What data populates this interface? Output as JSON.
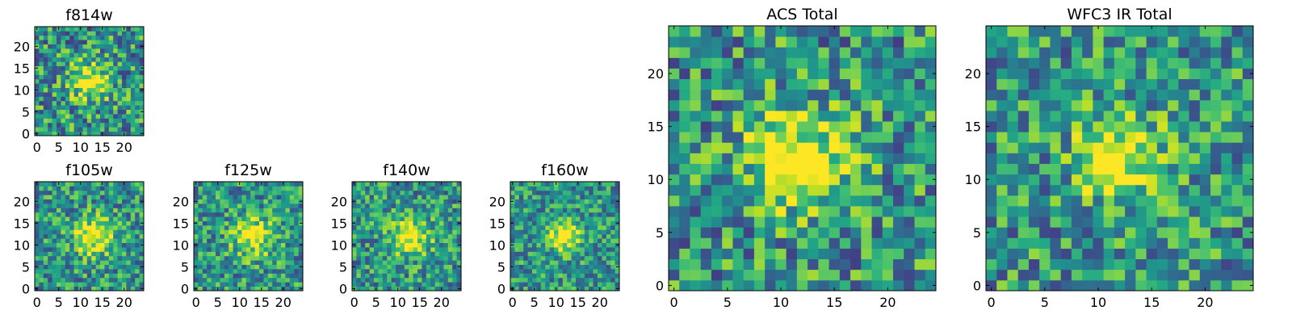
{
  "figure_title": "",
  "chart_data": [
    {
      "type": "heatmap",
      "title": "f814w",
      "grid_size": 25,
      "xticks": [
        0,
        5,
        10,
        15,
        20
      ],
      "yticks": [
        0,
        5,
        10,
        15,
        20
      ],
      "xlim": [
        0,
        25
      ],
      "ylim": [
        0,
        25
      ],
      "colormap": "viridis",
      "peak": {
        "x": 12,
        "y": 12,
        "sigma": 3.0,
        "amplitude": 0.55
      },
      "noise": 0.35,
      "seed": 11
    },
    {
      "type": "heatmap",
      "title": "f105w",
      "grid_size": 25,
      "xticks": [
        0,
        5,
        10,
        15,
        20
      ],
      "yticks": [
        0,
        5,
        10,
        15,
        20
      ],
      "xlim": [
        0,
        25
      ],
      "ylim": [
        0,
        25
      ],
      "colormap": "viridis",
      "peak": {
        "x": 13,
        "y": 12,
        "sigma": 3.0,
        "amplitude": 0.55
      },
      "noise": 0.3,
      "seed": 23
    },
    {
      "type": "heatmap",
      "title": "f125w",
      "grid_size": 25,
      "xticks": [
        0,
        5,
        10,
        15,
        20
      ],
      "yticks": [
        0,
        5,
        10,
        15,
        20
      ],
      "xlim": [
        0,
        25
      ],
      "ylim": [
        0,
        25
      ],
      "colormap": "viridis",
      "peak": {
        "x": 13,
        "y": 12,
        "sigma": 3.2,
        "amplitude": 0.5
      },
      "noise": 0.3,
      "seed": 37
    },
    {
      "type": "heatmap",
      "title": "f140w",
      "grid_size": 25,
      "xticks": [
        0,
        5,
        10,
        15,
        20
      ],
      "yticks": [
        0,
        5,
        10,
        15,
        20
      ],
      "xlim": [
        0,
        25
      ],
      "ylim": [
        0,
        25
      ],
      "colormap": "viridis",
      "peak": {
        "x": 13,
        "y": 12,
        "sigma": 3.0,
        "amplitude": 0.55
      },
      "noise": 0.3,
      "seed": 41
    },
    {
      "type": "heatmap",
      "title": "f160w",
      "grid_size": 25,
      "xticks": [
        0,
        5,
        10,
        15,
        20
      ],
      "yticks": [
        0,
        5,
        10,
        15,
        20
      ],
      "xlim": [
        0,
        25
      ],
      "ylim": [
        0,
        25
      ],
      "colormap": "viridis",
      "peak": {
        "x": 12,
        "y": 12,
        "sigma": 2.6,
        "amplitude": 0.55
      },
      "noise": 0.28,
      "seed": 53
    },
    {
      "type": "heatmap",
      "title": "ACS Total",
      "grid_size": 25,
      "xticks": [
        0,
        5,
        10,
        15,
        20
      ],
      "yticks": [
        0,
        5,
        10,
        15,
        20
      ],
      "xlim": [
        0,
        25
      ],
      "ylim": [
        0,
        25
      ],
      "colormap": "viridis",
      "peak": {
        "x": 12,
        "y": 12,
        "sigma": 3.2,
        "amplitude": 0.55
      },
      "noise": 0.34,
      "seed": 67
    },
    {
      "type": "heatmap",
      "title": "WFC3 IR Total",
      "grid_size": 25,
      "xticks": [
        0,
        5,
        10,
        15,
        20
      ],
      "yticks": [
        0,
        5,
        10,
        15,
        20
      ],
      "xlim": [
        0,
        25
      ],
      "ylim": [
        0,
        25
      ],
      "colormap": "viridis",
      "peak": {
        "x": 12,
        "y": 12,
        "sigma": 2.8,
        "amplitude": 0.55
      },
      "noise": 0.32,
      "seed": 79
    }
  ]
}
